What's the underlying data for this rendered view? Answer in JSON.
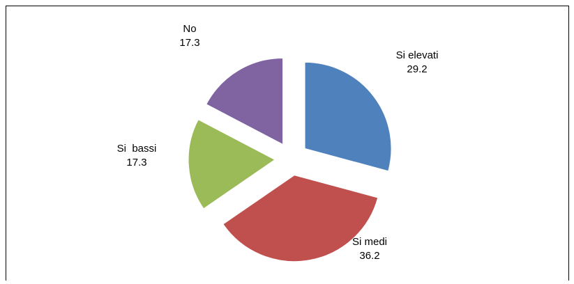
{
  "chart_data": {
    "type": "pie",
    "categories": [
      "Si elevati",
      "Si medi",
      "Si  bassi",
      "No"
    ],
    "values": [
      29.2,
      36.2,
      17.3,
      17.3
    ],
    "colors": [
      "#4f81bd",
      "#c0504d",
      "#9bbb59",
      "#8064a2"
    ],
    "exploded": true
  }
}
